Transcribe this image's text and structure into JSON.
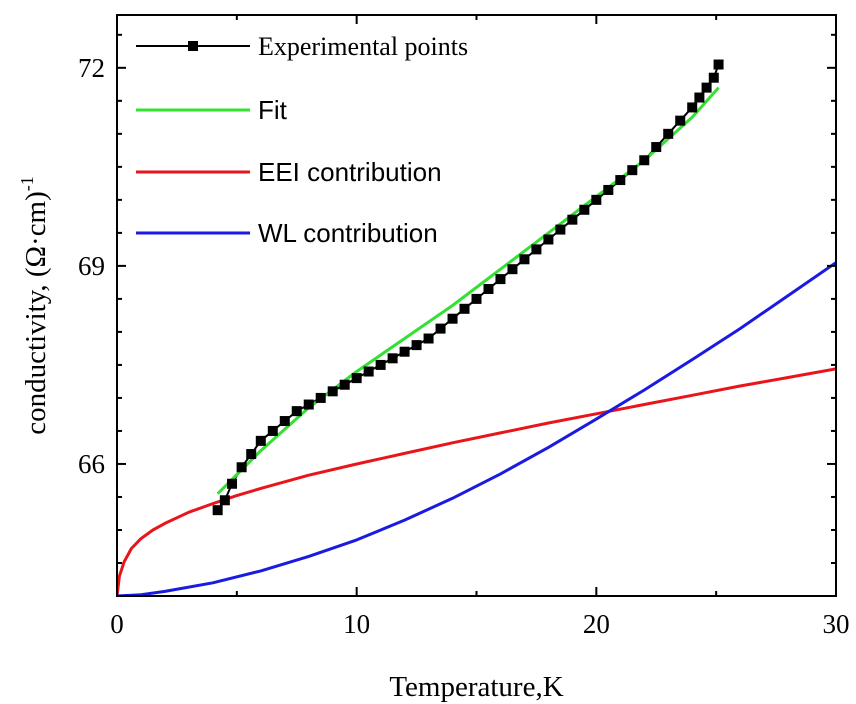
{
  "chart_data": {
    "type": "line",
    "xlabel": "Temperature,K",
    "ylabel": "conductivity, (Ω·cm)",
    "ylabel_superscript": "-1",
    "xlim": [
      0,
      30
    ],
    "ylim": [
      64.0,
      72.8
    ],
    "x_ticks": [
      0,
      10,
      20,
      30
    ],
    "y_ticks": [
      66,
      69,
      72
    ],
    "x_tick_labels": [
      "0",
      "10",
      "20",
      "30"
    ],
    "y_tick_labels": [
      "66",
      "69",
      "72"
    ],
    "grid": false,
    "legend_position": "top-left",
    "series": [
      {
        "name": "Experimental points",
        "style": "line-with-square-markers",
        "color": "#000000",
        "x": [
          4.2,
          4.5,
          4.8,
          5.2,
          5.6,
          6.0,
          6.5,
          7.0,
          7.5,
          8.0,
          8.5,
          9.0,
          9.5,
          10.0,
          10.5,
          11.0,
          11.5,
          12.0,
          12.5,
          13.0,
          13.5,
          14.0,
          14.5,
          15.0,
          15.5,
          16.0,
          16.5,
          17.0,
          17.5,
          18.0,
          18.5,
          19.0,
          19.5,
          20.0,
          20.5,
          21.0,
          21.5,
          22.0,
          22.5,
          23.0,
          23.5,
          24.0,
          24.3,
          24.6,
          24.9,
          25.1
        ],
        "y": [
          65.3,
          65.45,
          65.7,
          65.95,
          66.15,
          66.35,
          66.5,
          66.65,
          66.8,
          66.9,
          67.0,
          67.1,
          67.2,
          67.3,
          67.4,
          67.5,
          67.6,
          67.7,
          67.8,
          67.9,
          68.05,
          68.2,
          68.35,
          68.5,
          68.65,
          68.8,
          68.95,
          69.1,
          69.25,
          69.4,
          69.55,
          69.7,
          69.85,
          70.0,
          70.15,
          70.3,
          70.45,
          70.6,
          70.8,
          71.0,
          71.2,
          71.4,
          71.55,
          71.7,
          71.85,
          72.05
        ]
      },
      {
        "name": "Fit",
        "style": "line",
        "color": "#33e033",
        "x": [
          4.2,
          6,
          8,
          10,
          12,
          14,
          16,
          18,
          20,
          22,
          24,
          25.1
        ],
        "y": [
          65.55,
          66.2,
          66.85,
          67.4,
          67.9,
          68.4,
          68.95,
          69.5,
          70.05,
          70.6,
          71.25,
          71.7
        ]
      },
      {
        "name": "EEI contribution",
        "style": "line",
        "color": "#e8151b",
        "x": [
          0,
          0.1,
          0.3,
          0.6,
          1,
          1.5,
          2,
          3,
          4,
          5,
          6,
          8,
          10,
          12,
          14,
          16,
          18,
          20,
          22,
          24,
          26,
          28,
          30
        ],
        "y": [
          64.0,
          64.3,
          64.52,
          64.72,
          64.87,
          65.0,
          65.1,
          65.27,
          65.4,
          65.52,
          65.63,
          65.83,
          66.0,
          66.16,
          66.32,
          66.47,
          66.62,
          66.76,
          66.9,
          67.04,
          67.18,
          67.31,
          67.44
        ]
      },
      {
        "name": "WL contribution",
        "style": "line",
        "color": "#1a1ae0",
        "x": [
          0,
          1,
          2,
          4,
          6,
          8,
          10,
          12,
          14,
          16,
          18,
          20,
          22,
          24,
          26,
          28,
          30
        ],
        "y": [
          64.0,
          64.02,
          64.07,
          64.2,
          64.38,
          64.6,
          64.85,
          65.15,
          65.48,
          65.85,
          66.25,
          66.68,
          67.12,
          67.58,
          68.05,
          68.55,
          69.05
        ]
      }
    ]
  }
}
